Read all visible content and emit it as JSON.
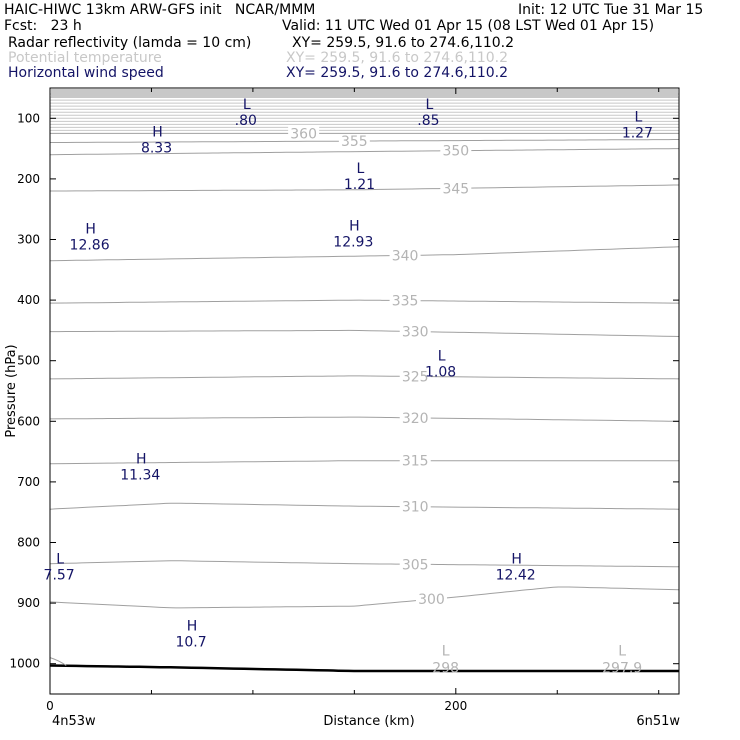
{
  "header": {
    "model": "HAIC-HIWC 13km ARW-GFS init   NCAR/MMM",
    "init": "Init: 12 UTC Tue 31 Mar 15",
    "fcst": "Fcst:   23 h",
    "valid": "Valid: 11 UTC Wed 01 Apr 15 (08 LST Wed 01 Apr 15)",
    "fields": [
      {
        "name": "Radar reflectivity (lamda = 10 cm)",
        "xy": "XY= 259.5, 91.6 to 274.6,110.2"
      },
      {
        "name": "Potential temperature",
        "xy": "XY= 259.5, 91.6 to 274.6,110.2"
      },
      {
        "name": "Horizontal wind speed",
        "xy": "XY= 259.5, 91.6 to 274.6,110.2"
      }
    ]
  },
  "chart_data": {
    "type": "line",
    "ylabel": "Pressure (hPa)",
    "xlabel": "Distance (km)",
    "x_ticks": [
      "0",
      "200"
    ],
    "x_tick_values": [
      0,
      200
    ],
    "x_minor_ticks": [
      50,
      100,
      150,
      250,
      300
    ],
    "y_ticks": [
      "100",
      "200",
      "300",
      "400",
      "500",
      "600",
      "700",
      "800",
      "900",
      "1000"
    ],
    "y_tick_values": [
      100,
      200,
      300,
      400,
      500,
      600,
      700,
      800,
      900,
      1000
    ],
    "x_range": [
      0,
      310
    ],
    "y_range": [
      1050,
      50
    ],
    "start_label": "4n53w",
    "end_label": "6n51w",
    "theta_contours": [
      {
        "label": "360",
        "x": [
          0,
          310
        ],
        "p": [
          125,
          125
        ]
      },
      {
        "label": "355",
        "x": [
          0,
          310
        ],
        "p": [
          140,
          135
        ]
      },
      {
        "label": "350",
        "x": [
          0,
          150,
          310
        ],
        "p": [
          160,
          155,
          150
        ]
      },
      {
        "label": "345",
        "x": [
          0,
          150,
          310
        ],
        "p": [
          220,
          218,
          210
        ]
      },
      {
        "label": "340",
        "x": [
          0,
          100,
          200,
          310
        ],
        "p": [
          335,
          330,
          325,
          312
        ]
      },
      {
        "label": "335",
        "x": [
          0,
          150,
          310
        ],
        "p": [
          405,
          400,
          405
        ]
      },
      {
        "label": "330",
        "x": [
          0,
          150,
          310
        ],
        "p": [
          452,
          450,
          460
        ]
      },
      {
        "label": "325",
        "x": [
          0,
          150,
          310
        ],
        "p": [
          530,
          525,
          530
        ]
      },
      {
        "label": "320",
        "x": [
          0,
          150,
          310
        ],
        "p": [
          596,
          593,
          600
        ]
      },
      {
        "label": "315",
        "x": [
          0,
          150,
          310
        ],
        "p": [
          670,
          665,
          665
        ]
      },
      {
        "label": "310",
        "x": [
          0,
          60,
          150,
          310
        ],
        "p": [
          745,
          735,
          740,
          745
        ]
      },
      {
        "label": "305",
        "x": [
          0,
          60,
          150,
          310
        ],
        "p": [
          835,
          830,
          835,
          840
        ]
      },
      {
        "label": "300",
        "x": [
          0,
          60,
          150,
          200,
          250,
          310
        ],
        "p": [
          898,
          908,
          905,
          890,
          873,
          878
        ]
      }
    ],
    "upper_grey_lines_p": [
      60,
      65,
      70,
      75,
      80,
      85,
      90,
      95,
      100,
      105,
      110,
      115,
      120
    ],
    "ground_surface": {
      "x": [
        0,
        60,
        120,
        150,
        310
      ],
      "p": [
        1003,
        1006,
        1010,
        1012,
        1012
      ]
    },
    "extrema": [
      {
        "type": "L",
        "value": ".80",
        "x": 97,
        "p": 85
      },
      {
        "type": "L",
        "value": ".85",
        "x": 187,
        "p": 85
      },
      {
        "type": "L",
        "value": "1.27",
        "x": 290,
        "p": 105
      },
      {
        "type": "H",
        "value": "8.33",
        "x": 53,
        "p": 130
      },
      {
        "type": "L",
        "value": "1.21",
        "x": 153,
        "p": 190
      },
      {
        "type": "H",
        "value": "12.86",
        "x": 20,
        "p": 290
      },
      {
        "type": "H",
        "value": "12.93",
        "x": 150,
        "p": 285
      },
      {
        "type": "L",
        "value": "1.08",
        "x": 193,
        "p": 500
      },
      {
        "type": "H",
        "value": "11.34",
        "x": 45,
        "p": 670
      },
      {
        "type": "L",
        "value": "7.57",
        "x": 5,
        "p": 835
      },
      {
        "type": "H",
        "value": "12.42",
        "x": 230,
        "p": 835
      },
      {
        "type": "H",
        "value": "10.7",
        "x": 70,
        "p": 945
      }
    ],
    "theta_extrema": [
      {
        "type": "L",
        "value": "298",
        "x": 195,
        "p": 1000
      },
      {
        "type": "L",
        "value": "297.9",
        "x": 282,
        "p": 1000
      }
    ]
  }
}
